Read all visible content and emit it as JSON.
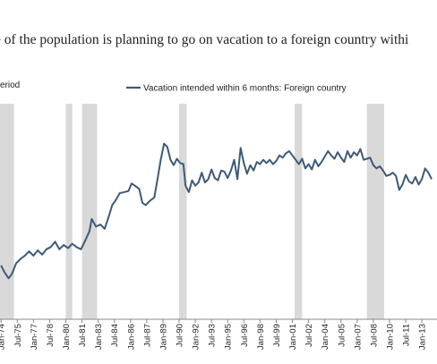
{
  "title": "e of  the population is planning to go on vacation to a foreign country withi",
  "chart_data": {
    "type": "line",
    "recession_legend": "eriod",
    "series": [
      {
        "name": "Vacation intended within 6 months: Foreign country",
        "color": "#3f5a75",
        "points": [
          [
            1974.0,
            7.0
          ],
          [
            1974.3,
            6.4
          ],
          [
            1974.7,
            5.8
          ],
          [
            1975.0,
            6.2
          ],
          [
            1975.4,
            7.2
          ],
          [
            1975.8,
            7.6
          ],
          [
            1976.2,
            7.9
          ],
          [
            1976.6,
            8.3
          ],
          [
            1977.0,
            7.9
          ],
          [
            1977.4,
            8.4
          ],
          [
            1977.8,
            8.0
          ],
          [
            1978.2,
            8.5
          ],
          [
            1978.6,
            8.7
          ],
          [
            1979.0,
            9.2
          ],
          [
            1979.4,
            8.5
          ],
          [
            1979.8,
            8.9
          ],
          [
            1980.2,
            8.6
          ],
          [
            1980.6,
            9.0
          ],
          [
            1981.0,
            8.7
          ],
          [
            1981.4,
            8.5
          ],
          [
            1981.8,
            9.3
          ],
          [
            1982.2,
            10.2
          ],
          [
            1982.4,
            11.3
          ],
          [
            1982.8,
            10.6
          ],
          [
            1983.2,
            10.8
          ],
          [
            1983.6,
            10.4
          ],
          [
            1984.0,
            11.6
          ],
          [
            1984.3,
            12.6
          ],
          [
            1984.6,
            13.0
          ],
          [
            1985.0,
            13.7
          ],
          [
            1985.4,
            13.8
          ],
          [
            1985.8,
            13.9
          ],
          [
            1986.1,
            14.6
          ],
          [
            1986.4,
            14.4
          ],
          [
            1986.8,
            14.1
          ],
          [
            1987.1,
            12.8
          ],
          [
            1987.4,
            12.6
          ],
          [
            1987.8,
            13.0
          ],
          [
            1988.2,
            13.3
          ],
          [
            1988.5,
            15.0
          ],
          [
            1988.8,
            16.8
          ],
          [
            1989.1,
            18.3
          ],
          [
            1989.4,
            18.0
          ],
          [
            1989.7,
            16.8
          ],
          [
            1990.0,
            16.3
          ],
          [
            1990.3,
            16.9
          ],
          [
            1990.6,
            16.5
          ],
          [
            1990.9,
            16.4
          ],
          [
            1991.1,
            14.4
          ],
          [
            1991.4,
            13.8
          ],
          [
            1991.7,
            14.9
          ],
          [
            1992.0,
            14.4
          ],
          [
            1992.3,
            14.7
          ],
          [
            1992.6,
            15.6
          ],
          [
            1992.9,
            14.7
          ],
          [
            1993.2,
            15.0
          ],
          [
            1993.5,
            15.9
          ],
          [
            1993.8,
            15.1
          ],
          [
            1994.1,
            14.9
          ],
          [
            1994.4,
            15.8
          ],
          [
            1994.7,
            15.7
          ],
          [
            1995.0,
            15.1
          ],
          [
            1995.3,
            15.8
          ],
          [
            1995.6,
            16.8
          ],
          [
            1995.9,
            15.0
          ],
          [
            1996.2,
            17.9
          ],
          [
            1996.5,
            16.5
          ],
          [
            1996.8,
            15.5
          ],
          [
            1997.1,
            16.3
          ],
          [
            1997.4,
            15.8
          ],
          [
            1997.7,
            16.6
          ],
          [
            1998.0,
            16.4
          ],
          [
            1998.3,
            16.8
          ],
          [
            1998.6,
            16.5
          ],
          [
            1998.9,
            16.8
          ],
          [
            1999.2,
            16.4
          ],
          [
            1999.5,
            16.7
          ],
          [
            1999.8,
            17.2
          ],
          [
            2000.1,
            17.0
          ],
          [
            2000.4,
            17.4
          ],
          [
            2000.7,
            17.6
          ],
          [
            2001.0,
            17.2
          ],
          [
            2001.3,
            16.8
          ],
          [
            2001.6,
            16.4
          ],
          [
            2001.9,
            16.9
          ],
          [
            2002.2,
            16.0
          ],
          [
            2002.5,
            16.4
          ],
          [
            2002.8,
            15.9
          ],
          [
            2003.1,
            16.8
          ],
          [
            2003.4,
            16.2
          ],
          [
            2003.7,
            16.6
          ],
          [
            2004.0,
            17.1
          ],
          [
            2004.3,
            17.6
          ],
          [
            2004.6,
            17.2
          ],
          [
            2004.9,
            16.9
          ],
          [
            2005.2,
            17.5
          ],
          [
            2005.5,
            17.0
          ],
          [
            2005.8,
            16.6
          ],
          [
            2006.1,
            17.6
          ],
          [
            2006.4,
            17.0
          ],
          [
            2006.7,
            17.5
          ],
          [
            2007.0,
            17.2
          ],
          [
            2007.3,
            17.8
          ],
          [
            2007.6,
            16.8
          ],
          [
            2007.9,
            16.9
          ],
          [
            2008.2,
            17.0
          ],
          [
            2008.5,
            16.3
          ],
          [
            2008.8,
            16.0
          ],
          [
            2009.1,
            16.2
          ],
          [
            2009.4,
            15.8
          ],
          [
            2009.7,
            15.3
          ],
          [
            2010.0,
            15.4
          ],
          [
            2010.3,
            15.6
          ],
          [
            2010.6,
            15.3
          ],
          [
            2010.9,
            14.0
          ],
          [
            2011.2,
            14.5
          ],
          [
            2011.5,
            15.4
          ],
          [
            2011.8,
            14.8
          ],
          [
            2012.1,
            14.6
          ],
          [
            2012.4,
            15.2
          ],
          [
            2012.7,
            14.5
          ],
          [
            2013.0,
            15.0
          ],
          [
            2013.3,
            16.0
          ],
          [
            2013.6,
            15.6
          ],
          [
            2013.9,
            15.0
          ]
        ]
      }
    ],
    "recession_bands": [
      [
        1973.9,
        1975.2
      ],
      [
        1980.0,
        1980.6
      ],
      [
        1981.5,
        1982.9
      ],
      [
        1990.5,
        1991.2
      ],
      [
        2001.2,
        2001.9
      ],
      [
        2007.9,
        2009.5
      ]
    ],
    "x_ticks": [
      "Jan-74",
      "Jul-75",
      "Jan-77",
      "Jul-78",
      "Jan-80",
      "Jul-81",
      "Jan-83",
      "Jul-84",
      "Jan-86",
      "Jul-87",
      "Jan-89",
      "Jul-90",
      "Jan-92",
      "Jul-93",
      "Jan-95",
      "Jul-96",
      "Jan-98",
      "Jul-99",
      "Jan-01",
      "Jul-02",
      "Jan-04",
      "Jul-05",
      "Jan-07",
      "Jul-08",
      "Jan-10",
      "Jul-11",
      "Jan-13"
    ],
    "x_tick_values": [
      1974.0,
      1975.5,
      1977.0,
      1978.5,
      1980.0,
      1981.5,
      1983.0,
      1984.5,
      1986.0,
      1987.5,
      1989.0,
      1990.5,
      1992.0,
      1993.5,
      1995.0,
      1996.5,
      1998.0,
      1999.5,
      2001.0,
      2002.5,
      2004.0,
      2005.5,
      2007.0,
      2008.5,
      2010.0,
      2011.5,
      2013.0
    ],
    "xlim": [
      1973.9,
      2014.4
    ],
    "ylim": [
      2,
      22
    ],
    "legend_placement": "top",
    "grid": false
  }
}
